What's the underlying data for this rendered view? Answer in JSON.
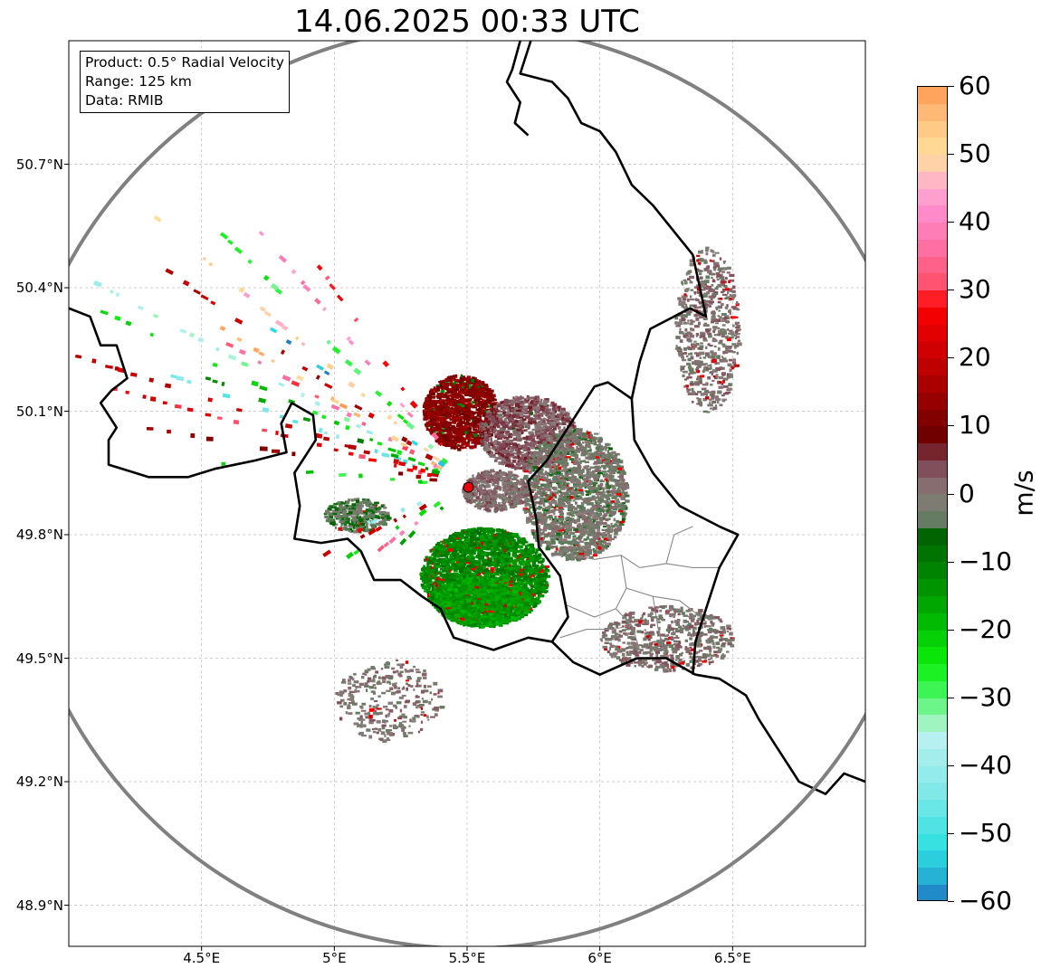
{
  "chart_data": {
    "type": "heatmap",
    "title": "14.06.2025 00:33 UTC",
    "info_box": [
      "Product: 0.5° Radial Velocity",
      "Range: 125 km",
      "Data: RMIB"
    ],
    "xlim": [
      4.0,
      7.0
    ],
    "ylim": [
      48.8,
      51.0
    ],
    "x_ticks": [
      4.5,
      5.0,
      5.5,
      6.0,
      6.5
    ],
    "x_tick_labels": [
      "4.5°E",
      "5°E",
      "5.5°E",
      "6°E",
      "6.5°E"
    ],
    "y_ticks": [
      48.9,
      49.2,
      49.5,
      49.8,
      50.1,
      50.4,
      50.7
    ],
    "y_tick_labels": [
      "48.9°N",
      "49.2°N",
      "49.5°N",
      "49.8°N",
      "50.1°N",
      "50.4°N",
      "50.7°N"
    ],
    "grid": true,
    "radar_site": {
      "lon": 5.505,
      "lat": 49.915
    },
    "range_km": 125,
    "range_ring_radius_deg": [
      1.72,
      1.12
    ],
    "colorbar": {
      "label": "m/s",
      "vmin": -60,
      "vmax": 60,
      "ticks": [
        60,
        50,
        40,
        30,
        20,
        10,
        0,
        -10,
        -20,
        -30,
        -40,
        -50,
        -60
      ],
      "tick_labels": [
        "60",
        "50",
        "40",
        "30",
        "20",
        "10",
        "0",
        "−10",
        "−20",
        "−30",
        "−40",
        "−50",
        "−60"
      ],
      "color_stops": [
        {
          "v": -60,
          "c": "#1f77c4"
        },
        {
          "v": -56,
          "c": "#26b6d6"
        },
        {
          "v": -52,
          "c": "#2fe0e0"
        },
        {
          "v": -44,
          "c": "#7fe8e8"
        },
        {
          "v": -36,
          "c": "#b8f0f0"
        },
        {
          "v": -33,
          "c": "#98f5b0"
        },
        {
          "v": -30,
          "c": "#4cf56c"
        },
        {
          "v": -25,
          "c": "#0cf00c"
        },
        {
          "v": -18,
          "c": "#00b400"
        },
        {
          "v": -10,
          "c": "#007a00"
        },
        {
          "v": -6,
          "c": "#006400"
        },
        {
          "v": -5,
          "c": "#5a7c5a"
        },
        {
          "v": 0,
          "c": "#8a7a7a"
        },
        {
          "v": 5,
          "c": "#7e4050"
        },
        {
          "v": 8,
          "c": "#6a0000"
        },
        {
          "v": 20,
          "c": "#c80000"
        },
        {
          "v": 28,
          "c": "#ff0000"
        },
        {
          "v": 30,
          "c": "#ff4c64"
        },
        {
          "v": 36,
          "c": "#ff6ea0"
        },
        {
          "v": 42,
          "c": "#ff8ed0"
        },
        {
          "v": 46,
          "c": "#ffb4c8"
        },
        {
          "v": 50,
          "c": "#ffe09a"
        },
        {
          "v": 56,
          "c": "#ffbb7a"
        },
        {
          "v": 60,
          "c": "#ff9a50"
        }
      ]
    },
    "boundaries": [
      {
        "name": "belgium-france",
        "points": [
          [
            4.0,
            50.35
          ],
          [
            4.08,
            50.33
          ],
          [
            4.12,
            50.26
          ],
          [
            4.18,
            50.26
          ],
          [
            4.22,
            50.18
          ],
          [
            4.16,
            50.15
          ],
          [
            4.12,
            50.12
          ],
          [
            4.18,
            50.06
          ],
          [
            4.15,
            50.03
          ],
          [
            4.15,
            49.97
          ],
          [
            4.3,
            49.94
          ],
          [
            4.45,
            49.94
          ],
          [
            4.55,
            49.96
          ],
          [
            4.7,
            49.98
          ],
          [
            4.82,
            50.0
          ],
          [
            4.8,
            50.07
          ],
          [
            4.84,
            50.12
          ],
          [
            4.92,
            50.09
          ],
          [
            4.93,
            50.03
          ],
          [
            4.85,
            49.95
          ],
          [
            4.87,
            49.87
          ],
          [
            4.85,
            49.79
          ],
          [
            4.95,
            49.78
          ],
          [
            5.05,
            49.79
          ],
          [
            5.1,
            49.76
          ],
          [
            5.15,
            49.69
          ],
          [
            5.25,
            49.69
          ],
          [
            5.33,
            49.65
          ],
          [
            5.4,
            49.62
          ],
          [
            5.45,
            49.55
          ],
          [
            5.6,
            49.52
          ],
          [
            5.73,
            49.55
          ],
          [
            5.82,
            49.54
          ]
        ]
      },
      {
        "name": "belgium-luxembourg",
        "points": [
          [
            5.82,
            49.54
          ],
          [
            5.88,
            49.6
          ],
          [
            5.85,
            49.7
          ],
          [
            5.77,
            49.77
          ],
          [
            5.76,
            49.84
          ],
          [
            5.73,
            49.93
          ],
          [
            5.8,
            49.98
          ],
          [
            5.87,
            50.05
          ],
          [
            5.93,
            50.11
          ],
          [
            5.98,
            50.16
          ],
          [
            6.03,
            50.17
          ],
          [
            6.12,
            50.13
          ]
        ]
      },
      {
        "name": "belgium-germany",
        "points": [
          [
            6.12,
            50.13
          ],
          [
            6.15,
            50.22
          ],
          [
            6.19,
            50.3
          ],
          [
            6.34,
            50.35
          ],
          [
            6.4,
            50.33
          ],
          [
            6.35,
            50.48
          ],
          [
            6.3,
            50.52
          ],
          [
            6.2,
            50.6
          ],
          [
            6.12,
            50.65
          ],
          [
            6.06,
            50.73
          ],
          [
            6.0,
            50.78
          ],
          [
            5.93,
            50.8
          ],
          [
            5.88,
            50.86
          ],
          [
            5.82,
            50.9
          ],
          [
            5.7,
            50.92
          ],
          [
            5.74,
            51.0
          ]
        ]
      },
      {
        "name": "netherlands-limburg",
        "points": [
          [
            5.7,
            51.0
          ],
          [
            5.67,
            50.93
          ],
          [
            5.65,
            50.9
          ],
          [
            5.7,
            50.85
          ],
          [
            5.68,
            50.8
          ],
          [
            5.73,
            50.77
          ]
        ]
      },
      {
        "name": "luxembourg-germany",
        "points": [
          [
            6.12,
            50.13
          ],
          [
            6.13,
            50.03
          ],
          [
            6.2,
            49.95
          ],
          [
            6.3,
            49.87
          ],
          [
            6.45,
            49.82
          ],
          [
            6.52,
            49.8
          ],
          [
            6.45,
            49.72
          ],
          [
            6.4,
            49.62
          ],
          [
            6.36,
            49.54
          ],
          [
            6.35,
            49.46
          ]
        ]
      },
      {
        "name": "luxembourg-france",
        "points": [
          [
            5.82,
            49.54
          ],
          [
            5.9,
            49.49
          ],
          [
            6.0,
            49.46
          ],
          [
            6.14,
            49.5
          ],
          [
            6.25,
            49.5
          ],
          [
            6.36,
            49.46
          ]
        ]
      },
      {
        "name": "france-germany",
        "points": [
          [
            6.36,
            49.46
          ],
          [
            6.45,
            49.45
          ],
          [
            6.55,
            49.41
          ],
          [
            6.6,
            49.35
          ],
          [
            6.68,
            49.27
          ],
          [
            6.75,
            49.2
          ],
          [
            6.85,
            49.17
          ],
          [
            6.92,
            49.22
          ],
          [
            7.0,
            49.2
          ]
        ]
      }
    ],
    "districts": [
      {
        "points": [
          [
            5.9,
            49.75
          ],
          [
            5.98,
            49.74
          ],
          [
            6.08,
            49.75
          ],
          [
            6.15,
            49.72
          ],
          [
            6.25,
            49.73
          ],
          [
            6.35,
            49.72
          ],
          [
            6.45,
            49.72
          ]
        ]
      },
      {
        "points": [
          [
            6.08,
            49.75
          ],
          [
            6.1,
            49.67
          ],
          [
            6.06,
            49.62
          ],
          [
            6.12,
            49.58
          ],
          [
            6.15,
            49.52
          ]
        ]
      },
      {
        "points": [
          [
            6.1,
            49.67
          ],
          [
            6.2,
            49.65
          ],
          [
            6.3,
            49.64
          ],
          [
            6.38,
            49.6
          ]
        ]
      },
      {
        "points": [
          [
            5.87,
            49.63
          ],
          [
            5.98,
            49.6
          ],
          [
            6.06,
            49.62
          ]
        ]
      },
      {
        "points": [
          [
            5.85,
            49.55
          ],
          [
            5.95,
            49.57
          ],
          [
            6.05,
            49.57
          ],
          [
            6.12,
            49.58
          ]
        ]
      },
      {
        "points": [
          [
            6.2,
            49.65
          ],
          [
            6.22,
            49.57
          ],
          [
            6.25,
            49.5
          ]
        ]
      },
      {
        "points": [
          [
            6.25,
            49.73
          ],
          [
            6.28,
            49.8
          ],
          [
            6.35,
            49.82
          ]
        ]
      }
    ],
    "echo_fields": [
      {
        "name": "approach-north",
        "lon": 5.47,
        "lat": 50.1,
        "rx": 0.14,
        "ry": 0.09,
        "v": 12,
        "density": 0.8
      },
      {
        "name": "approach-northeast",
        "lon": 5.72,
        "lat": 50.05,
        "rx": 0.18,
        "ry": 0.09,
        "v": 3,
        "density": 0.6
      },
      {
        "name": "recede-south",
        "lon": 5.56,
        "lat": 49.7,
        "rx": 0.24,
        "ry": 0.12,
        "v": -12,
        "density": 0.82
      },
      {
        "name": "recede-south-core",
        "lon": 5.55,
        "lat": 49.64,
        "rx": 0.18,
        "ry": 0.06,
        "v": -15,
        "density": 0.9
      },
      {
        "name": "weak-east",
        "lon": 5.9,
        "lat": 49.9,
        "rx": 0.2,
        "ry": 0.16,
        "v": -2,
        "density": 0.5
      },
      {
        "name": "weak-west",
        "lon": 5.08,
        "lat": 49.85,
        "rx": 0.12,
        "ry": 0.04,
        "v": -4,
        "density": 0.6
      },
      {
        "name": "center-mix",
        "lon": 5.6,
        "lat": 49.91,
        "rx": 0.12,
        "ry": 0.05,
        "v": 1,
        "density": 0.7
      },
      {
        "name": "ardennes-clutter",
        "lon": 6.4,
        "lat": 50.3,
        "rx": 0.12,
        "ry": 0.2,
        "v": 0,
        "density": 0.22
      },
      {
        "name": "luxembourg-clutter",
        "lon": 6.25,
        "lat": 49.55,
        "rx": 0.25,
        "ry": 0.08,
        "v": 0,
        "density": 0.25
      },
      {
        "name": "lorraine-speckle",
        "lon": 5.2,
        "lat": 49.4,
        "rx": 0.2,
        "ry": 0.1,
        "v": 0,
        "density": 0.12
      }
    ],
    "radial_streaks": [
      {
        "az": 300,
        "len": 1.35,
        "v": 34
      },
      {
        "az": 295,
        "len": 1.5,
        "v": -22
      },
      {
        "az": 305,
        "len": 1.45,
        "v": 18
      },
      {
        "az": 290,
        "len": 1.2,
        "v": -45
      },
      {
        "az": 310,
        "len": 1.55,
        "v": 48
      },
      {
        "az": 285,
        "len": 1.4,
        "v": 26
      },
      {
        "az": 315,
        "len": 1.3,
        "v": -28
      },
      {
        "az": 280,
        "len": 1.25,
        "v": 12
      },
      {
        "az": 320,
        "len": 1.25,
        "v": 40
      },
      {
        "az": 298,
        "len": 1.6,
        "v": -35
      },
      {
        "az": 302,
        "len": 1.15,
        "v": 55
      },
      {
        "az": 292,
        "len": 1.05,
        "v": -15
      },
      {
        "az": 288,
        "len": 1.55,
        "v": 22
      },
      {
        "az": 308,
        "len": 1.1,
        "v": -55
      },
      {
        "az": 325,
        "len": 1.05,
        "v": 30
      },
      {
        "az": 275,
        "len": 0.95,
        "v": -24
      },
      {
        "az": 240,
        "len": 0.5,
        "v": -22
      },
      {
        "az": 245,
        "len": 0.6,
        "v": 20
      },
      {
        "az": 235,
        "len": 0.45,
        "v": 36
      },
      {
        "az": 250,
        "len": 0.5,
        "v": -40
      },
      {
        "az": 230,
        "len": 0.35,
        "v": -18
      }
    ]
  }
}
